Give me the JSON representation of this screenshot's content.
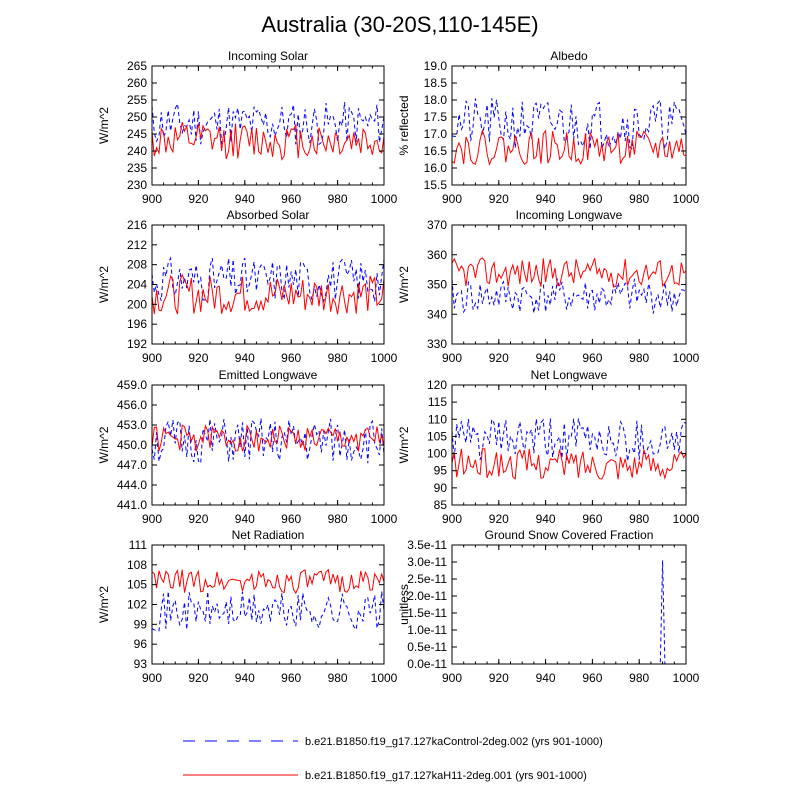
{
  "page_title": "Australia (30-20S,110-145E)",
  "colors": {
    "control": "#0000ff",
    "experiment": "#ff0000",
    "axis": "#000000"
  },
  "legend": [
    {
      "label": "b.e21.B1850.f19_g17.127kaControl-2deg.002 (yrs 901-1000)",
      "color": "#0000ff",
      "style": "dashed"
    },
    {
      "label": "b.e21.B1850.f19_g17.127kaH11-2deg.001 (yrs 901-1000)",
      "color": "#ff0000",
      "style": "solid"
    }
  ],
  "chart_data": [
    {
      "type": "line",
      "title": "Incoming Solar",
      "ylabel": "W/m^2",
      "xlim": [
        900,
        1000
      ],
      "xticks": [
        900,
        920,
        940,
        960,
        980,
        1000
      ],
      "ylim": [
        230,
        265
      ],
      "yticks": [
        "230",
        "235",
        "240",
        "245",
        "250",
        "255",
        "260",
        "265"
      ],
      "ytick_values": [
        230,
        235,
        240,
        245,
        250,
        255,
        260,
        265
      ],
      "series": [
        {
          "name": "control",
          "style": "dashed",
          "base": 248,
          "amp": 6.5,
          "seed": 11
        },
        {
          "name": "experiment",
          "style": "solid",
          "base": 243,
          "amp": 5.5,
          "seed": 12
        }
      ]
    },
    {
      "type": "line",
      "title": "Albedo",
      "ylabel": "% reflected",
      "xlim": [
        900,
        1000
      ],
      "xticks": [
        900,
        920,
        940,
        960,
        980,
        1000
      ],
      "ylim": [
        15.5,
        19.0
      ],
      "yticks": [
        "15.5",
        "16.0",
        "16.5",
        "17.0",
        "17.5",
        "18.0",
        "18.5",
        "19.0"
      ],
      "ytick_values": [
        15.5,
        16.0,
        16.5,
        17.0,
        17.5,
        18.0,
        18.5,
        19.0
      ],
      "series": [
        {
          "name": "control",
          "style": "dashed",
          "base": 17.3,
          "amp": 0.75,
          "seed": 21
        },
        {
          "name": "experiment",
          "style": "solid",
          "base": 16.6,
          "amp": 0.5,
          "seed": 22
        }
      ]
    },
    {
      "type": "line",
      "title": "Absorbed Solar",
      "ylabel": "W/m^2",
      "xlim": [
        900,
        1000
      ],
      "xticks": [
        900,
        920,
        940,
        960,
        980,
        1000
      ],
      "ylim": [
        192,
        216
      ],
      "yticks": [
        "192",
        "196",
        "200",
        "204",
        "208",
        "212",
        "216"
      ],
      "ytick_values": [
        192,
        196,
        200,
        204,
        208,
        212,
        216
      ],
      "series": [
        {
          "name": "control",
          "style": "dashed",
          "base": 205,
          "amp": 4.5,
          "seed": 31
        },
        {
          "name": "experiment",
          "style": "solid",
          "base": 202,
          "amp": 4.0,
          "seed": 32
        }
      ]
    },
    {
      "type": "line",
      "title": "Incoming Longwave",
      "ylabel": "W/m^2",
      "xlim": [
        900,
        1000
      ],
      "xticks": [
        900,
        920,
        940,
        960,
        980,
        1000
      ],
      "ylim": [
        330,
        370
      ],
      "yticks": [
        "330",
        "340",
        "350",
        "360",
        "370"
      ],
      "ytick_values": [
        330,
        340,
        350,
        360,
        370
      ],
      "series": [
        {
          "name": "control",
          "style": "dashed",
          "base": 346,
          "amp": 6.0,
          "seed": 41
        },
        {
          "name": "experiment",
          "style": "solid",
          "base": 354,
          "amp": 5.0,
          "seed": 42
        }
      ]
    },
    {
      "type": "line",
      "title": "Emitted Longwave",
      "ylabel": "W/m^2",
      "xlim": [
        900,
        1000
      ],
      "xticks": [
        900,
        920,
        940,
        960,
        980,
        1000
      ],
      "ylim": [
        441,
        459
      ],
      "yticks": [
        "441.0",
        "444.0",
        "447.0",
        "450.0",
        "453.0",
        "456.0",
        "459.0"
      ],
      "ytick_values": [
        441,
        444,
        447,
        450,
        453,
        456,
        459
      ],
      "series": [
        {
          "name": "control",
          "style": "dashed",
          "base": 450.5,
          "amp": 3.5,
          "seed": 51
        },
        {
          "name": "experiment",
          "style": "solid",
          "base": 451.0,
          "amp": 2.0,
          "seed": 52
        }
      ]
    },
    {
      "type": "line",
      "title": "Net Longwave",
      "ylabel": "W/m^2",
      "xlim": [
        900,
        1000
      ],
      "xticks": [
        900,
        920,
        940,
        960,
        980,
        1000
      ],
      "ylim": [
        85,
        120
      ],
      "yticks": [
        "85",
        "90",
        "95",
        "100",
        "105",
        "110",
        "115",
        "120"
      ],
      "ytick_values": [
        85,
        90,
        95,
        100,
        105,
        110,
        115,
        120
      ],
      "series": [
        {
          "name": "control",
          "style": "dashed",
          "base": 104,
          "amp": 6.5,
          "seed": 61
        },
        {
          "name": "experiment",
          "style": "solid",
          "base": 97,
          "amp": 4.5,
          "seed": 62
        }
      ]
    },
    {
      "type": "line",
      "title": "Net Radiation",
      "ylabel": "W/m^2",
      "xlim": [
        900,
        1000
      ],
      "xticks": [
        900,
        920,
        940,
        960,
        980,
        1000
      ],
      "ylim": [
        93,
        111
      ],
      "yticks": [
        "93",
        "96",
        "99",
        "102",
        "105",
        "108",
        "111"
      ],
      "ytick_values": [
        93,
        96,
        99,
        102,
        105,
        108,
        111
      ],
      "series": [
        {
          "name": "control",
          "style": "dashed",
          "base": 101,
          "amp": 3.0,
          "seed": 71
        },
        {
          "name": "experiment",
          "style": "solid",
          "base": 105.5,
          "amp": 1.8,
          "seed": 72
        }
      ]
    },
    {
      "type": "line",
      "title": "Ground Snow Covered Fraction",
      "ylabel": "unitless",
      "xlim": [
        900,
        1000
      ],
      "xticks": [
        900,
        920,
        940,
        960,
        980,
        1000
      ],
      "ylim": [
        0,
        3.5e-11
      ],
      "yticks": [
        "0.0e-11",
        "0.5e-11",
        "1.0e-11",
        "1.5e-11",
        "2.0e-11",
        "2.5e-11",
        "3.0e-11",
        "3.5e-11"
      ],
      "ytick_values": [
        0,
        5e-12,
        1e-11,
        1.5e-11,
        2e-11,
        2.5e-11,
        3e-11,
        3.5e-11
      ],
      "series": [
        {
          "name": "control",
          "style": "dashed",
          "spike_year": 990,
          "spike_value": 3.05e-11
        },
        {
          "name": "experiment",
          "style": "solid",
          "constant": 0
        }
      ]
    }
  ]
}
